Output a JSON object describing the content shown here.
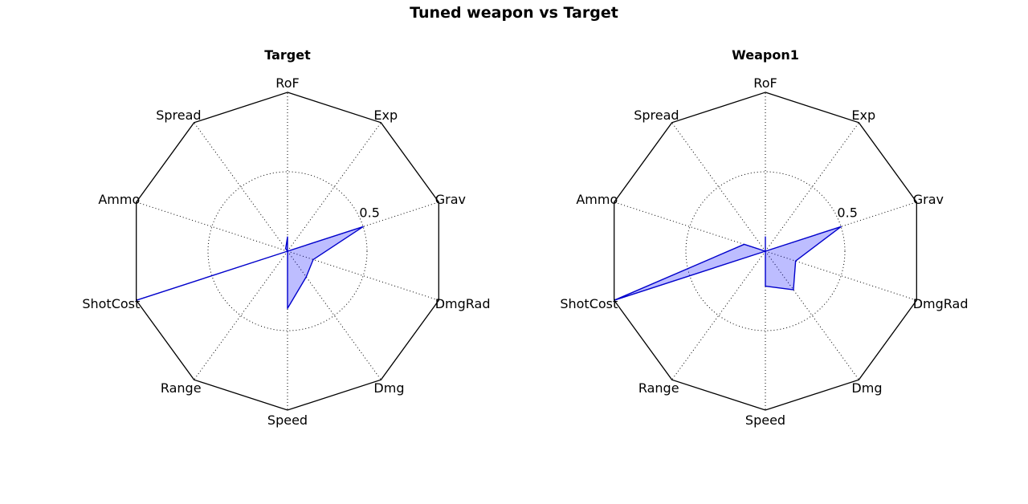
{
  "figure": {
    "title": "Tuned weapon vs Target"
  },
  "chart_data": [
    {
      "type": "radar",
      "title": "Target",
      "axes": [
        "RoF",
        "Exp",
        "Grav",
        "DmgRad",
        "Dmg",
        "Speed",
        "Range",
        "ShotCost",
        "Ammo",
        "Spread"
      ],
      "rlim": [
        0,
        1
      ],
      "r_ticks": [
        0.5
      ],
      "r_tick_labels": [
        "0.5"
      ],
      "grid": true,
      "series": [
        {
          "values": [
            0.09,
            0.0,
            0.5,
            0.17,
            0.2,
            0.36,
            0.0,
            1.0,
            0.0,
            0.02
          ],
          "color": "#0000ff"
        }
      ]
    },
    {
      "type": "radar",
      "title": "Weapon1",
      "axes": [
        "RoF",
        "Exp",
        "Grav",
        "DmgRad",
        "Dmg",
        "Speed",
        "Range",
        "ShotCost",
        "Ammo",
        "Spread"
      ],
      "rlim": [
        0,
        1
      ],
      "r_ticks": [
        0.5
      ],
      "r_tick_labels": [
        "0.5"
      ],
      "grid": true,
      "series": [
        {
          "values": [
            0.09,
            0.0,
            0.5,
            0.2,
            0.3,
            0.22,
            0.0,
            1.0,
            0.14,
            0.0
          ],
          "color": "#0000ff"
        }
      ]
    }
  ]
}
